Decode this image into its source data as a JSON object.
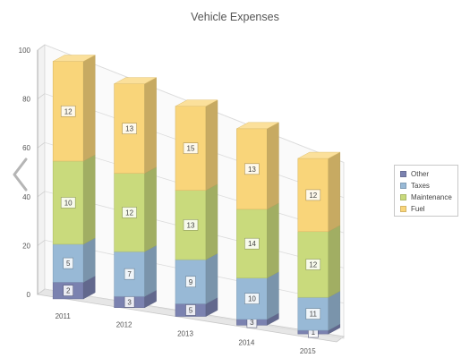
{
  "title": "Vehicle Expenses",
  "nav": {
    "prev_icon": "chevron-left-icon"
  },
  "legend": {
    "items": [
      {
        "label": "Other",
        "color": "#7b82b0"
      },
      {
        "label": "Taxes",
        "color": "#98b9d6"
      },
      {
        "label": "Maintenance",
        "color": "#c9da7c"
      },
      {
        "label": "Fuel",
        "color": "#f9d57a"
      }
    ]
  },
  "chart_data": {
    "type": "bar",
    "stacked": true,
    "three_d": true,
    "title": "Vehicle Expenses",
    "categories": [
      "2011",
      "2012",
      "2013",
      "2014",
      "2015"
    ],
    "ylim": [
      0,
      100
    ],
    "yticks": [
      0,
      20,
      40,
      60,
      80,
      100
    ],
    "grid": true,
    "legend_position": "right",
    "series": [
      {
        "name": "Other",
        "values": [
          2,
          3,
          5,
          3,
          1
        ],
        "color": "#7b82b0"
      },
      {
        "name": "Taxes",
        "values": [
          5,
          7,
          9,
          10,
          11
        ],
        "color": "#98b9d6"
      },
      {
        "name": "Maintenance",
        "values": [
          10,
          12,
          13,
          14,
          12
        ],
        "color": "#c9da7c"
      },
      {
        "name": "Fuel",
        "values": [
          12,
          13,
          15,
          13,
          12
        ],
        "color": "#f9d57a"
      }
    ],
    "segment_bounds": [
      [
        [
          0,
          7
        ],
        [
          7,
          23
        ],
        [
          23,
          58
        ],
        [
          58,
          100
        ]
      ],
      [
        [
          0,
          5
        ],
        [
          5,
          25
        ],
        [
          25,
          60
        ],
        [
          60,
          100
        ]
      ],
      [
        [
          0,
          6
        ],
        [
          6,
          27
        ],
        [
          27,
          60
        ],
        [
          60,
          100
        ]
      ],
      [
        [
          0,
          3
        ],
        [
          3,
          24
        ],
        [
          24,
          59
        ],
        [
          59,
          100
        ]
      ],
      [
        [
          0,
          2
        ],
        [
          2,
          20
        ],
        [
          20,
          56
        ],
        [
          56,
          96
        ]
      ]
    ]
  }
}
